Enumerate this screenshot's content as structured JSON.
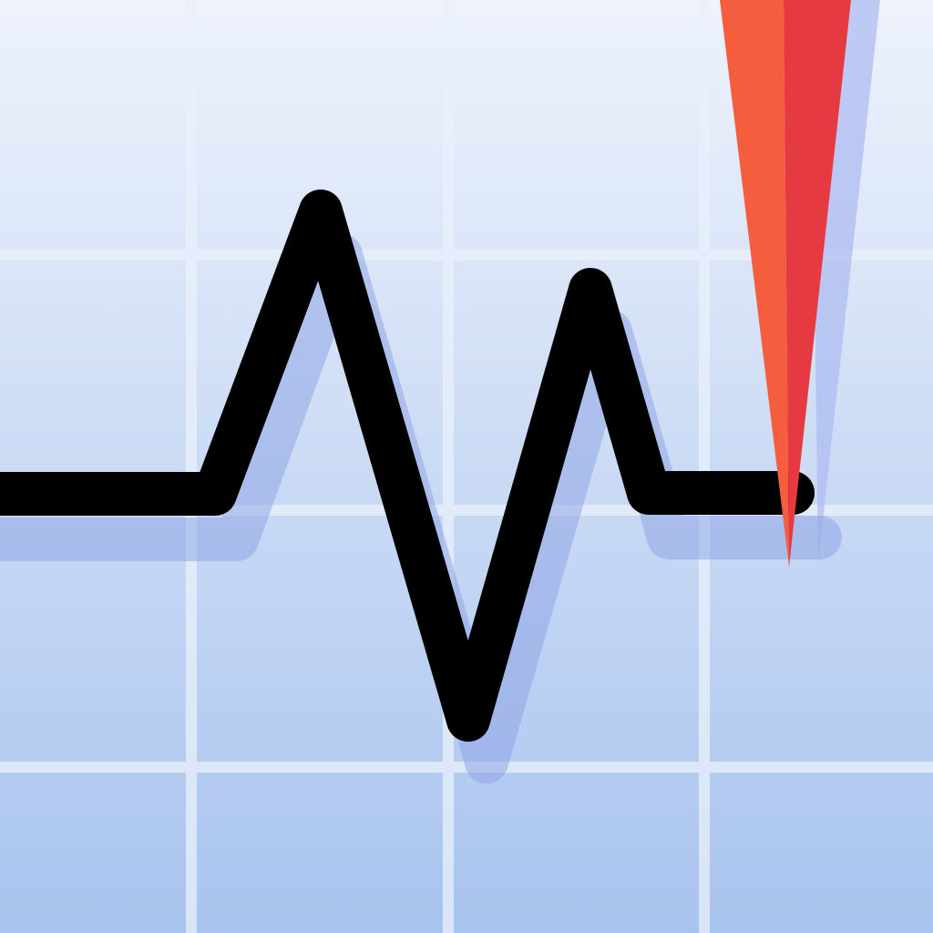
{
  "icon": {
    "kind": "seismograph-app-icon",
    "icons": [
      "grid-icon",
      "waveform-icon",
      "seismograph-needle-icon"
    ],
    "colors": {
      "background_top": "#eef3fc",
      "background_bottom": "#a8c3ee",
      "grid_line": "#eaf1fb",
      "waveform": "#000000",
      "waveform_shadow": "#8fa5e6",
      "needle_left": "#f45e3f",
      "needle_right": "#e53a42",
      "needle_shadow": "#aebcf0"
    }
  }
}
